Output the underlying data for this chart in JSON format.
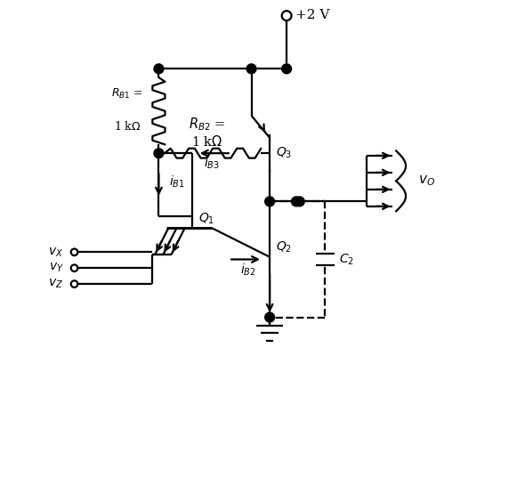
{
  "bg_color": "#ffffff",
  "line_color": "#000000",
  "figsize": [
    5.9,
    5.45
  ],
  "dpi": 100,
  "vcc_label": "+2 V",
  "rb1_label1": "$R_{B1}$ =",
  "rb1_label2": "1 k$\\Omega$",
  "rb2_label1": "$R_{B2}$ =",
  "rb2_label2": "1 k$\\Omega$",
  "q1_label": "$Q_1$",
  "q2_label": "$Q_2$",
  "q3_label": "$Q_3$",
  "ib1_label": "$i_{B1}$",
  "ib2_label": "$i_{B2}$",
  "ib3_label": "$i_{B3}$",
  "c2_label": "$C_2$",
  "vo_label": "$v_O$",
  "vx_label": "$v_X$",
  "vy_label": "$v_Y$",
  "vz_label": "$v_Z$"
}
